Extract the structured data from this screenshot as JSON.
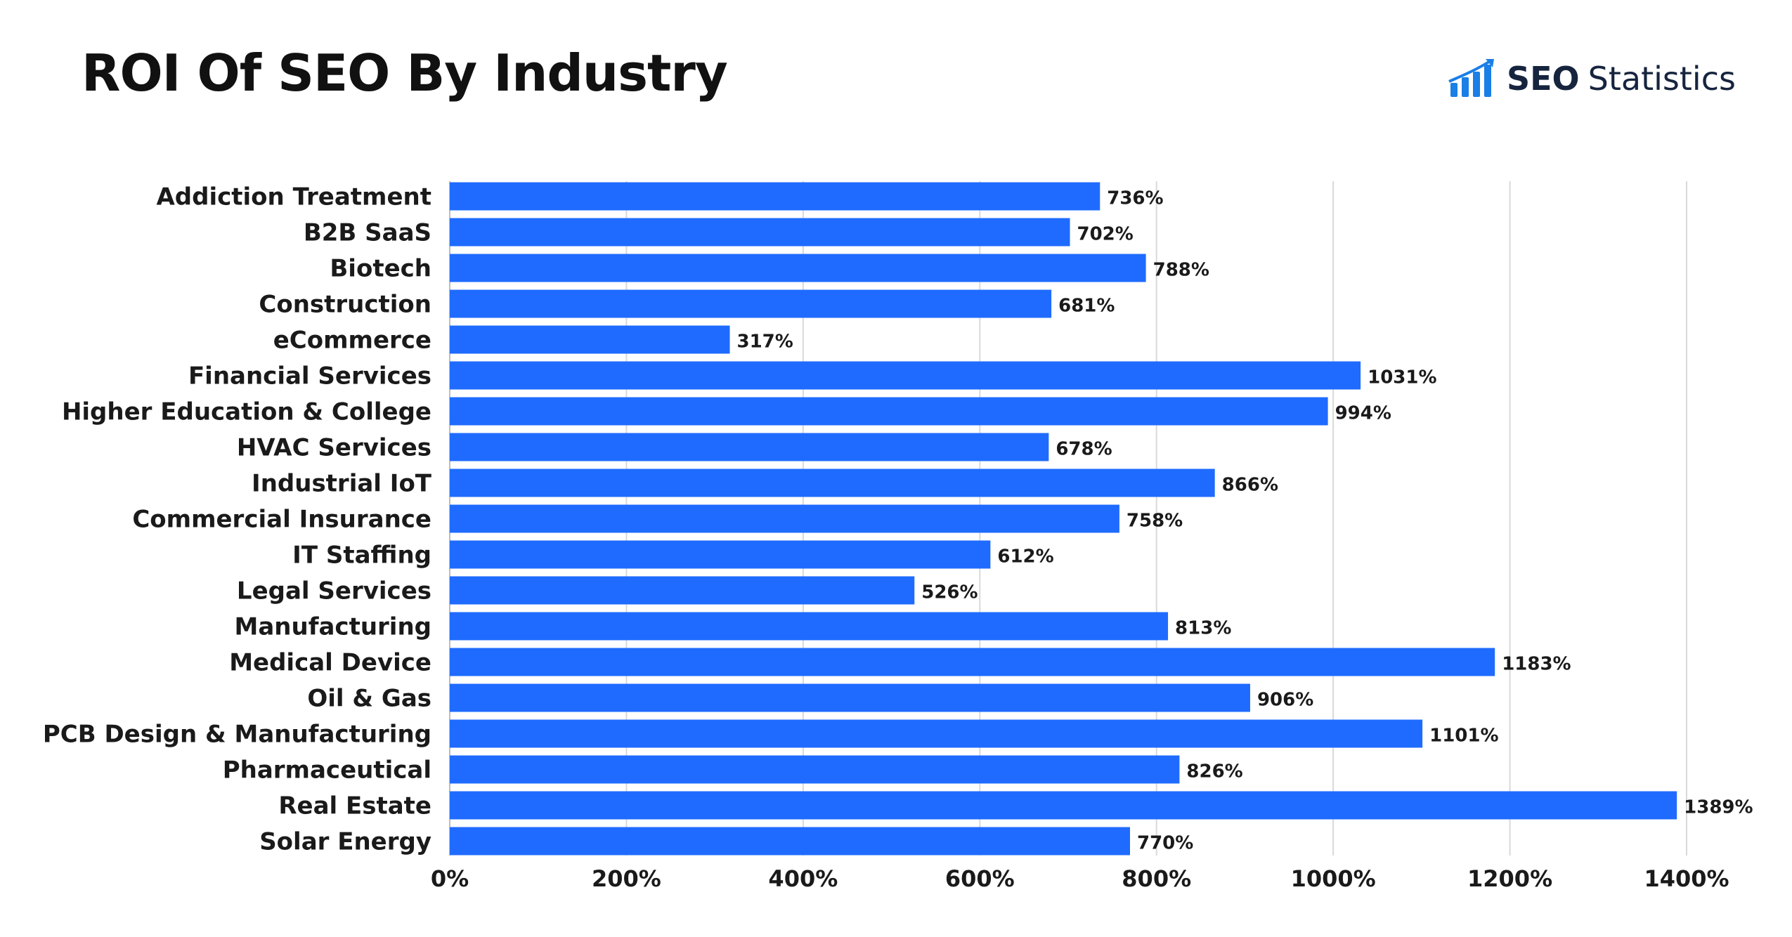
{
  "header": {
    "title": "ROI Of SEO By Industry",
    "brand_bold": "SEO",
    "brand_light": "Statistics",
    "brand_icon": "bar-chart-growth-icon"
  },
  "colors": {
    "bar": "#1f6bff",
    "grid": "#d9d9d9",
    "brand": "#16243e",
    "brand_icon": "#1a7fe6"
  },
  "chart_data": {
    "type": "bar",
    "orientation": "horizontal",
    "title": "ROI Of SEO By Industry",
    "xlabel": "",
    "ylabel": "",
    "xlim": [
      0,
      1400
    ],
    "x_ticks": [
      0,
      200,
      400,
      600,
      800,
      1000,
      1200,
      1400
    ],
    "x_tick_labels": [
      "0%",
      "200%",
      "400%",
      "600%",
      "800%",
      "1000%",
      "1200%",
      "1400%"
    ],
    "grid": "vertical",
    "categories": [
      "Addiction Treatment",
      "B2B SaaS",
      "Biotech",
      "Construction",
      "eCommerce",
      "Financial Services",
      "Higher Education & College",
      "HVAC Services",
      "Industrial IoT",
      "Commercial Insurance",
      "IT Staffing",
      "Legal Services",
      "Manufacturing",
      "Medical Device",
      "Oil & Gas",
      "PCB Design & Manufacturing",
      "Pharmaceutical",
      "Real Estate",
      "Solar Energy"
    ],
    "values": [
      736,
      702,
      788,
      681,
      317,
      1031,
      994,
      678,
      866,
      758,
      612,
      526,
      813,
      1183,
      906,
      1101,
      826,
      1389,
      770
    ],
    "value_labels": [
      "736%",
      "702%",
      "788%",
      "681%",
      "317%",
      "1031%",
      "994%",
      "678%",
      "866%",
      "758%",
      "612%",
      "526%",
      "813%",
      "1183%",
      "906%",
      "1101%",
      "826%",
      "1389%",
      "770%"
    ]
  }
}
